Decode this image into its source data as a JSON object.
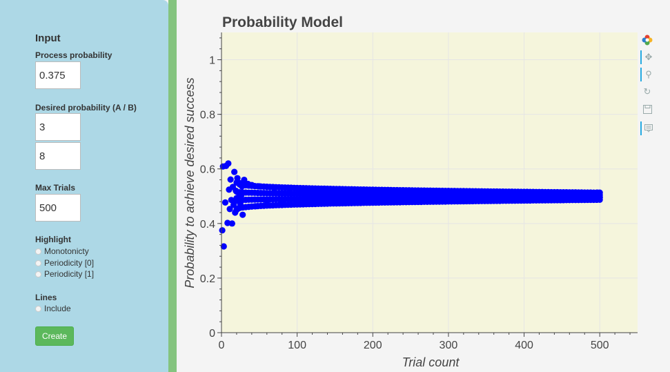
{
  "sidebar": {
    "heading": "Input",
    "process_probability": {
      "label": "Process probability",
      "value": "0.375"
    },
    "desired_probability": {
      "label": "Desired probability (A / B)",
      "a": "3",
      "b": "8"
    },
    "max_trials": {
      "label": "Max Trials",
      "value": "500"
    },
    "highlight": {
      "label": "Highlight",
      "options": [
        "Monotonicty",
        "Periodicity [0]",
        "Periodicity [1]"
      ]
    },
    "lines": {
      "label": "Lines",
      "option": "Include"
    },
    "create_label": "Create"
  },
  "toolbar": {
    "tools": [
      "bokeh-logo-icon",
      "pan-icon",
      "box-zoom-icon",
      "reset-icon",
      "save-icon",
      "hover-icon"
    ]
  },
  "colors": {
    "sidebar": "#add8e6",
    "divider": "#84c47f",
    "plot_background": "#f5f5dc",
    "points": "#0000ff",
    "button": "#5cb85c"
  },
  "chart_data": {
    "type": "scatter",
    "title": "Probability Model",
    "xlabel": "Trial count",
    "ylabel": "Probability to achieve desired success",
    "xlim": [
      0,
      550
    ],
    "ylim": [
      0,
      1.1
    ],
    "xticks": [
      0,
      100,
      200,
      300,
      400,
      500
    ],
    "yticks": [
      0,
      0.2,
      0.4,
      0.6,
      0.8,
      1
    ],
    "ytick_labels": [
      "0",
      "0.2",
      "0.4",
      "0.6",
      "0.8",
      "1"
    ],
    "grid": true,
    "series": [
      {
        "color": "#0000ff",
        "points": [
          [
            1,
            0.375
          ],
          [
            2,
            0.609
          ],
          [
            3,
            0.316
          ],
          [
            5,
            0.477
          ],
          [
            6,
            0.611
          ],
          [
            8,
            0.402
          ],
          [
            9,
            0.62
          ],
          [
            10,
            0.524
          ],
          [
            11,
            0.453
          ],
          [
            12,
            0.561
          ],
          [
            13,
            0.486
          ],
          [
            14,
            0.4
          ],
          [
            15,
            0.534
          ],
          [
            16,
            0.468
          ],
          [
            17,
            0.589
          ],
          [
            18,
            0.44
          ],
          [
            19,
            0.52
          ],
          [
            20,
            0.493
          ],
          [
            21,
            0.566
          ],
          [
            22,
            0.455
          ],
          [
            23,
            0.512
          ],
          [
            24,
            0.548
          ],
          [
            25,
            0.47
          ],
          [
            26,
            0.503
          ],
          [
            27,
            0.536
          ],
          [
            28,
            0.432
          ],
          [
            30,
            0.56
          ],
          [
            35,
            0.545
          ],
          [
            40,
            0.541
          ],
          [
            45,
            0.463
          ],
          [
            50,
            0.536
          ],
          [
            60,
            0.47
          ],
          [
            70,
            0.531
          ],
          [
            80,
            0.475
          ],
          [
            90,
            0.528
          ],
          [
            100,
            0.478
          ],
          [
            120,
            0.525
          ],
          [
            140,
            0.48
          ],
          [
            160,
            0.522
          ],
          [
            180,
            0.483
          ],
          [
            200,
            0.52
          ],
          [
            220,
            0.485
          ],
          [
            240,
            0.518
          ],
          [
            260,
            0.487
          ],
          [
            280,
            0.517
          ],
          [
            300,
            0.488
          ],
          [
            320,
            0.516
          ],
          [
            340,
            0.489
          ],
          [
            360,
            0.515
          ],
          [
            380,
            0.49
          ],
          [
            400,
            0.514
          ],
          [
            420,
            0.491
          ],
          [
            440,
            0.513
          ],
          [
            460,
            0.492
          ],
          [
            480,
            0.512
          ],
          [
            497,
            0.513
          ],
          [
            500,
            0.497
          ]
        ],
        "band": {
          "x_start": 20,
          "x_end": 500,
          "step": 4,
          "upper_start": 0.55,
          "upper_end": 0.513,
          "lower_start": 0.45,
          "lower_end": 0.487,
          "levels": 4
        }
      }
    ]
  }
}
